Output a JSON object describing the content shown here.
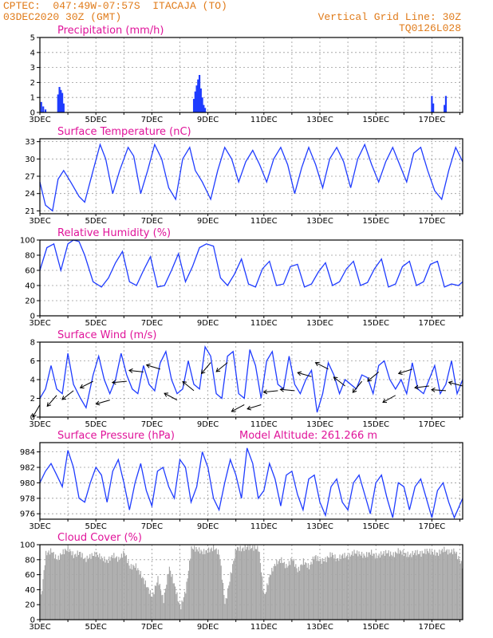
{
  "header": {
    "line1": "CPTEC:  047:49W-07:57S  ITACAJA (TO)",
    "line2": "03DEC2020 30Z (GMT)",
    "right1": "Vertical Grid Line: 30Z",
    "right2": "TQ0126L028"
  },
  "colors": {
    "header": "#e07b1a",
    "title": "#e0149a",
    "series": "#1f3cff",
    "bars": "#1f3cff",
    "cloud": "#a8a8a8",
    "arrows": "#000000"
  },
  "x_axis": {
    "labels": [
      "3DEC",
      "5DEC",
      "7DEC",
      "9DEC",
      "11DEC",
      "13DEC",
      "15DEC",
      "17DEC"
    ],
    "start_day": 3,
    "end_day": 18.1
  },
  "panels": {
    "precip": {
      "title": "Precipitation (mm/h)"
    },
    "temp": {
      "title": "Surface Temperature (nC)"
    },
    "rh": {
      "title": "Relative Humidity (%)"
    },
    "wind": {
      "title": "Surface Wind (m/s)"
    },
    "pres": {
      "title": "Surface Pressure (hPa)",
      "altitude": "Model Altitude: 261.266 m"
    },
    "cloud": {
      "title": "Cloud Cover (%)"
    }
  },
  "chart_data": [
    {
      "type": "bar",
      "title": "Precipitation (mm/h)",
      "ylim": [
        0,
        5
      ],
      "yticks": [
        0,
        1,
        2,
        3,
        4,
        5
      ],
      "x_unit": "day of December 2020",
      "x": [
        3.05,
        3.12,
        3.2,
        3.65,
        3.7,
        3.75,
        3.8,
        3.85,
        8.5,
        8.55,
        8.6,
        8.65,
        8.7,
        8.75,
        8.8,
        8.85,
        8.9,
        17.0,
        17.05,
        17.45,
        17.5
      ],
      "values": [
        0.7,
        0.4,
        0.2,
        1.2,
        1.7,
        1.5,
        1.3,
        0.6,
        0.9,
        1.4,
        1.8,
        2.2,
        2.5,
        1.6,
        1.0,
        0.5,
        0.3,
        1.1,
        0.6,
        0.5,
        1.1
      ]
    },
    {
      "type": "line",
      "title": "Surface Temperature (nC)",
      "ylim": [
        20.5,
        33.5
      ],
      "yticks": [
        21,
        24,
        27,
        30,
        33
      ],
      "x_unit": "day of December 2020",
      "x": [
        3.0,
        3.2,
        3.45,
        3.65,
        3.85,
        4.1,
        4.4,
        4.6,
        4.9,
        5.15,
        5.35,
        5.6,
        5.85,
        6.15,
        6.35,
        6.6,
        6.85,
        7.1,
        7.35,
        7.6,
        7.85,
        8.1,
        8.35,
        8.55,
        8.8,
        9.1,
        9.35,
        9.6,
        9.85,
        10.1,
        10.35,
        10.6,
        10.85,
        11.1,
        11.35,
        11.6,
        11.85,
        12.1,
        12.35,
        12.6,
        12.85,
        13.1,
        13.35,
        13.6,
        13.85,
        14.1,
        14.35,
        14.6,
        14.85,
        15.1,
        15.35,
        15.6,
        15.85,
        16.1,
        16.35,
        16.6,
        16.85,
        17.1,
        17.35,
        17.6,
        17.85,
        18.1
      ],
      "values": [
        26,
        22,
        21,
        26.5,
        28,
        26,
        23.5,
        22.5,
        28,
        32.5,
        30,
        24,
        28,
        32,
        30.5,
        24,
        28,
        32.5,
        30,
        25,
        23,
        30,
        32,
        28,
        26,
        23,
        28,
        32,
        30,
        26,
        29.5,
        31.5,
        29,
        26,
        30,
        32,
        29,
        24,
        28.5,
        32,
        29,
        25,
        30,
        32,
        29.5,
        25,
        30,
        32.5,
        29,
        26,
        29.5,
        32,
        29,
        26,
        31,
        32,
        28,
        24.5,
        23,
        28,
        32,
        29.5
      ]
    },
    {
      "type": "line",
      "title": "Relative Humidity (%)",
      "ylim": [
        0,
        100
      ],
      "yticks": [
        0,
        20,
        40,
        60,
        80,
        100
      ],
      "x_unit": "day of December 2020",
      "x": [
        3.0,
        3.25,
        3.5,
        3.75,
        4.0,
        4.2,
        4.4,
        4.6,
        4.9,
        5.2,
        5.45,
        5.7,
        5.95,
        6.2,
        6.45,
        6.7,
        6.95,
        7.2,
        7.45,
        7.7,
        7.95,
        8.2,
        8.45,
        8.7,
        8.95,
        9.2,
        9.45,
        9.7,
        9.95,
        10.2,
        10.45,
        10.7,
        10.95,
        11.2,
        11.45,
        11.7,
        11.95,
        12.2,
        12.45,
        12.7,
        12.95,
        13.2,
        13.45,
        13.7,
        13.95,
        14.2,
        14.45,
        14.7,
        14.95,
        15.2,
        15.45,
        15.7,
        15.95,
        16.2,
        16.45,
        16.7,
        16.95,
        17.2,
        17.45,
        17.7,
        17.95,
        18.1
      ],
      "values": [
        60,
        90,
        95,
        60,
        95,
        100,
        98,
        80,
        45,
        38,
        50,
        70,
        85,
        45,
        40,
        60,
        78,
        38,
        40,
        60,
        82,
        45,
        65,
        90,
        95,
        92,
        50,
        40,
        55,
        75,
        42,
        38,
        62,
        72,
        40,
        42,
        65,
        68,
        38,
        42,
        58,
        70,
        40,
        45,
        62,
        72,
        40,
        44,
        62,
        75,
        38,
        42,
        65,
        72,
        40,
        45,
        68,
        72,
        38,
        42,
        40,
        45
      ]
    },
    {
      "type": "line",
      "title": "Surface Wind (m/s)",
      "ylim": [
        0,
        8
      ],
      "yticks": [
        0,
        2,
        4,
        6,
        8
      ],
      "x_unit": "day of December 2020",
      "x": [
        3.0,
        3.2,
        3.4,
        3.6,
        3.8,
        4.0,
        4.2,
        4.45,
        4.65,
        4.9,
        5.1,
        5.3,
        5.5,
        5.7,
        5.9,
        6.1,
        6.3,
        6.5,
        6.7,
        6.9,
        7.1,
        7.3,
        7.5,
        7.7,
        7.9,
        8.1,
        8.3,
        8.5,
        8.7,
        8.9,
        9.1,
        9.3,
        9.5,
        9.7,
        9.9,
        10.1,
        10.3,
        10.5,
        10.7,
        10.9,
        11.1,
        11.3,
        11.5,
        11.7,
        11.9,
        12.1,
        12.3,
        12.5,
        12.7,
        12.9,
        13.1,
        13.3,
        13.5,
        13.7,
        13.9,
        14.1,
        14.3,
        14.5,
        14.7,
        14.9,
        15.1,
        15.3,
        15.5,
        15.7,
        15.9,
        16.1,
        16.3,
        16.5,
        16.7,
        16.9,
        17.1,
        17.3,
        17.5,
        17.7,
        17.9,
        18.1
      ],
      "values": [
        2.0,
        3.0,
        5.5,
        3.0,
        2.5,
        6.8,
        3.5,
        2.0,
        1.0,
        4.5,
        6.5,
        4.0,
        2.5,
        4.0,
        6.8,
        4.5,
        3.0,
        2.5,
        5.5,
        3.5,
        2.8,
        5.8,
        7.0,
        4.0,
        2.5,
        3.0,
        6.0,
        3.5,
        3.0,
        7.5,
        6.5,
        2.5,
        2.0,
        6.5,
        7.0,
        2.5,
        2.0,
        7.2,
        5.5,
        2.0,
        6.0,
        7.0,
        3.5,
        3.0,
        6.5,
        3.5,
        2.5,
        4.0,
        5.0,
        0.5,
        2.5,
        5.8,
        4.5,
        2.5,
        4.0,
        3.5,
        3.0,
        4.5,
        4.2,
        2.5,
        5.5,
        6.0,
        4.0,
        3.0,
        4.0,
        2.5,
        5.8,
        3.0,
        2.5,
        4.0,
        5.5,
        2.5,
        3.5,
        6.0,
        2.5,
        4.0
      ]
    },
    {
      "type": "line",
      "title": "Surface Pressure (hPa)",
      "ylim": [
        975.3,
        985.2
      ],
      "yticks": [
        976,
        978,
        980,
        982,
        984
      ],
      "x_unit": "day of December 2020",
      "x": [
        3.0,
        3.2,
        3.4,
        3.6,
        3.8,
        4.0,
        4.2,
        4.4,
        4.6,
        4.8,
        5.0,
        5.2,
        5.4,
        5.6,
        5.8,
        6.0,
        6.2,
        6.4,
        6.6,
        6.8,
        7.0,
        7.2,
        7.4,
        7.6,
        7.8,
        8.0,
        8.2,
        8.4,
        8.6,
        8.8,
        9.0,
        9.2,
        9.4,
        9.6,
        9.8,
        10.0,
        10.2,
        10.4,
        10.6,
        10.8,
        11.0,
        11.2,
        11.4,
        11.6,
        11.8,
        12.0,
        12.2,
        12.4,
        12.6,
        12.8,
        13.0,
        13.2,
        13.4,
        13.6,
        13.8,
        14.0,
        14.2,
        14.4,
        14.6,
        14.8,
        15.0,
        15.2,
        15.4,
        15.6,
        15.8,
        16.0,
        16.2,
        16.4,
        16.6,
        16.8,
        17.0,
        17.2,
        17.4,
        17.6,
        17.8,
        18.1
      ],
      "values": [
        980,
        981.5,
        982.5,
        981,
        979.5,
        984.2,
        982,
        978,
        977.5,
        980,
        982,
        981,
        977.5,
        981.5,
        983,
        980,
        976.5,
        980,
        982.5,
        979,
        977,
        981.5,
        982,
        979.5,
        978,
        983,
        982,
        977.5,
        979.5,
        984,
        982,
        978,
        976.5,
        980,
        983,
        981,
        978,
        984.5,
        982.5,
        978,
        979,
        982.5,
        980.5,
        977,
        981,
        981.5,
        978.5,
        976.5,
        980.5,
        981,
        977.5,
        975.8,
        979.5,
        980.5,
        977.5,
        976.5,
        980,
        981,
        978.5,
        976,
        980,
        981,
        978,
        975.5,
        980,
        979.5,
        976.5,
        979.5,
        980.5,
        978,
        975.5,
        979,
        980,
        977.5,
        975.5,
        978
      ]
    },
    {
      "type": "area",
      "title": "Cloud Cover (%)",
      "ylim": [
        0,
        100
      ],
      "yticks": [
        0,
        20,
        40,
        60,
        80,
        100
      ],
      "x_unit": "day of December 2020",
      "x": [
        3.0,
        3.2,
        3.4,
        3.6,
        3.8,
        4.0,
        4.2,
        4.4,
        4.6,
        4.8,
        5.0,
        5.2,
        5.4,
        5.6,
        5.8,
        6.0,
        6.2,
        6.4,
        6.6,
        6.8,
        7.0,
        7.2,
        7.4,
        7.6,
        7.8,
        8.0,
        8.2,
        8.4,
        8.6,
        8.8,
        9.0,
        9.2,
        9.4,
        9.6,
        9.8,
        10.0,
        10.2,
        10.4,
        10.6,
        10.8,
        11.0,
        11.2,
        11.4,
        11.6,
        11.8,
        12.0,
        12.2,
        12.4,
        12.6,
        12.8,
        13.0,
        13.2,
        13.4,
        13.6,
        13.8,
        14.0,
        14.2,
        14.4,
        14.6,
        14.8,
        15.0,
        15.2,
        15.4,
        15.6,
        15.8,
        16.0,
        16.2,
        16.4,
        16.6,
        16.8,
        17.0,
        17.2,
        17.4,
        17.6,
        17.8,
        18.1
      ],
      "values": [
        20,
        88,
        92,
        80,
        90,
        95,
        85,
        90,
        80,
        85,
        88,
        82,
        78,
        86,
        80,
        90,
        70,
        72,
        60,
        45,
        30,
        55,
        25,
        70,
        45,
        15,
        40,
        96,
        94,
        90,
        92,
        96,
        88,
        20,
        60,
        96,
        94,
        97,
        96,
        95,
        30,
        60,
        75,
        80,
        70,
        82,
        65,
        78,
        70,
        85,
        78,
        80,
        88,
        80,
        86,
        84,
        90,
        88,
        85,
        90,
        84,
        88,
        90,
        86,
        92,
        88,
        86,
        90,
        88,
        92,
        90,
        88,
        94,
        90,
        92,
        70
      ]
    }
  ]
}
